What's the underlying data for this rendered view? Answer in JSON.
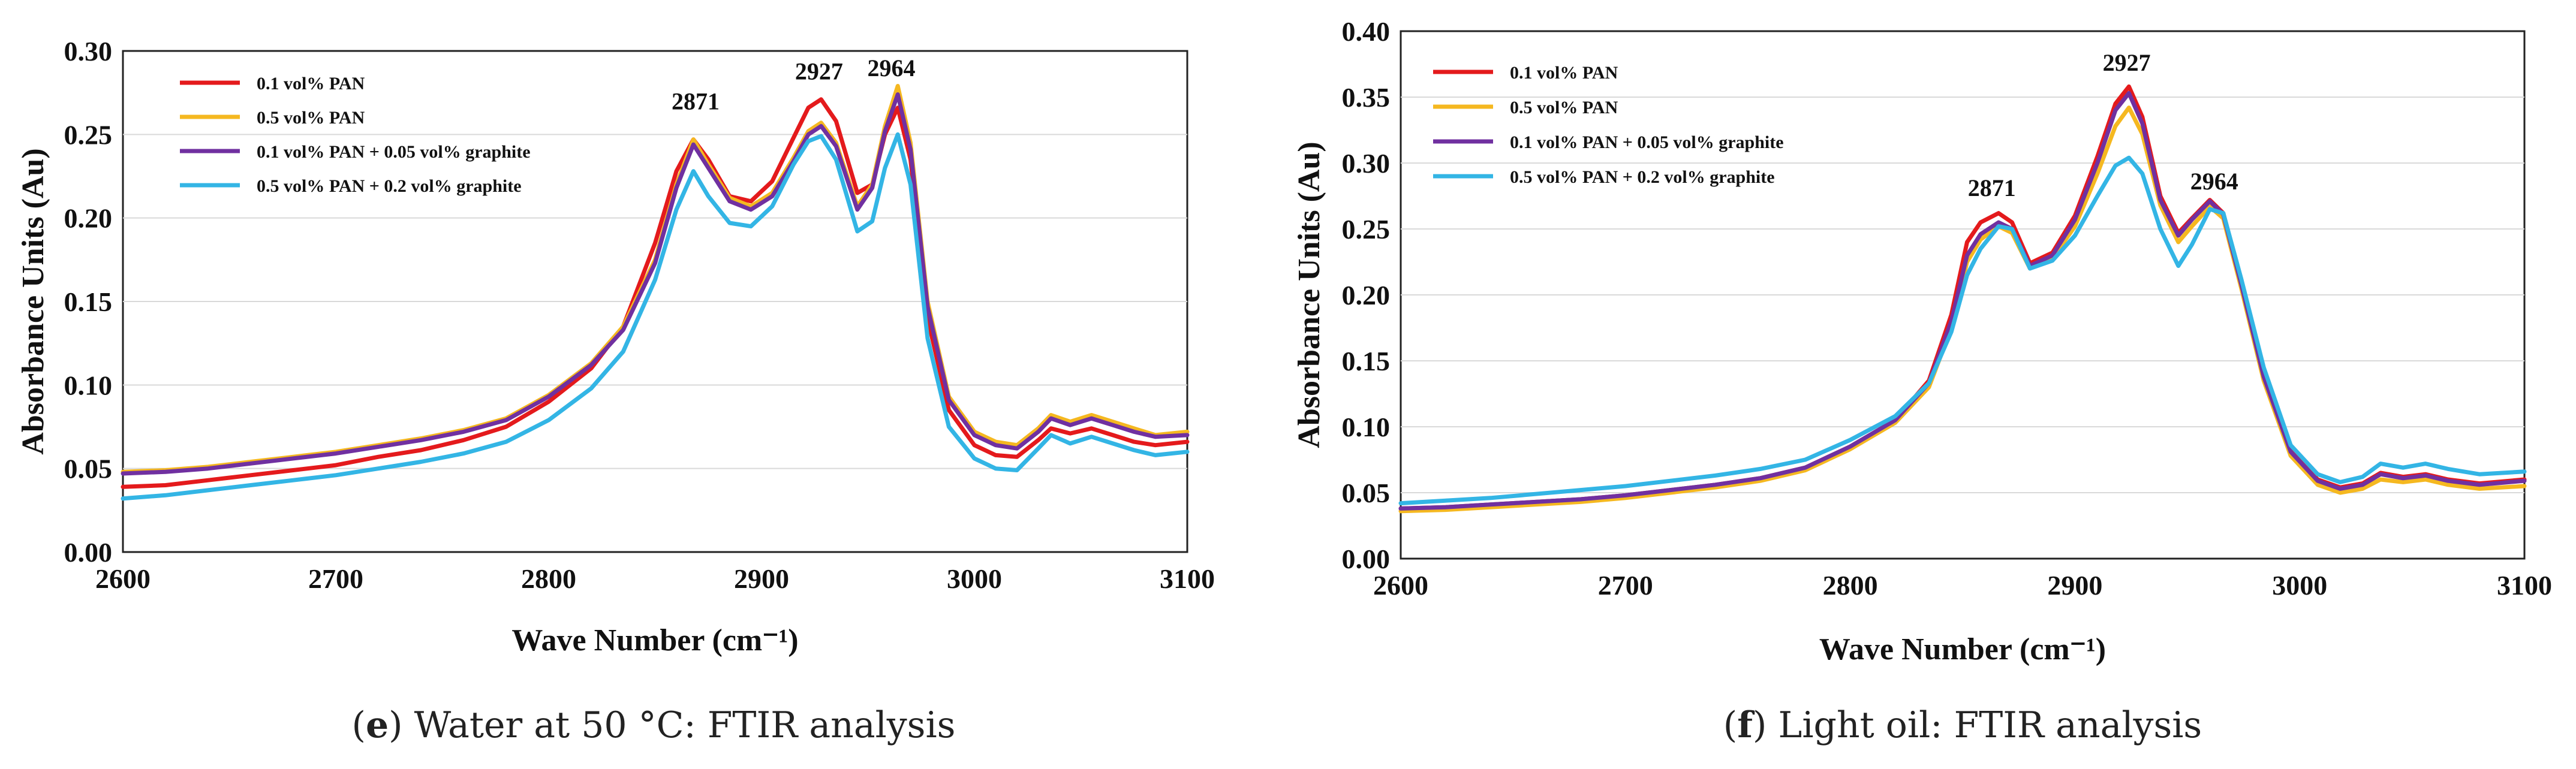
{
  "chart_data": [
    {
      "type": "line",
      "panel": "e",
      "caption_letter": "e",
      "caption_rest": " Water at 50 °C: FTIR analysis",
      "xlabel": "Wave Number (cm⁻¹)",
      "ylabel": "Absorbance Units (Au)",
      "xlim": [
        2600,
        3100
      ],
      "ylim": [
        0,
        0.3
      ],
      "xticks": [
        2600,
        2700,
        2800,
        2900,
        3000,
        3100
      ],
      "yticks": [
        0.0,
        0.05,
        0.1,
        0.15,
        0.2,
        0.25,
        0.3
      ],
      "ytick_labels": [
        "0.00",
        "0.05",
        "0.10",
        "0.15",
        "0.20",
        "0.25",
        "0.30"
      ],
      "legend_position": "top-left",
      "peak_annotations": [
        {
          "label": "2871",
          "x": 2869,
          "y": 0.265
        },
        {
          "label": "2927",
          "x": 2927,
          "y": 0.283
        },
        {
          "label": "2964",
          "x": 2961,
          "y": 0.285
        }
      ],
      "series": [
        {
          "name": "0.1 vol% PAN",
          "color": "#e41a1c",
          "x": [
            2600,
            2620,
            2640,
            2660,
            2680,
            2700,
            2720,
            2740,
            2760,
            2780,
            2800,
            2820,
            2835,
            2850,
            2860,
            2868,
            2875,
            2885,
            2895,
            2905,
            2915,
            2922,
            2928,
            2935,
            2945,
            2952,
            2958,
            2964,
            2970,
            2978,
            2988,
            3000,
            3010,
            3020,
            3030,
            3036,
            3045,
            3055,
            3065,
            3075,
            3085,
            3100
          ],
          "y": [
            0.039,
            0.04,
            0.043,
            0.046,
            0.049,
            0.052,
            0.057,
            0.061,
            0.067,
            0.075,
            0.09,
            0.11,
            0.135,
            0.185,
            0.228,
            0.247,
            0.235,
            0.213,
            0.21,
            0.222,
            0.248,
            0.266,
            0.271,
            0.258,
            0.215,
            0.22,
            0.25,
            0.266,
            0.235,
            0.14,
            0.085,
            0.064,
            0.058,
            0.057,
            0.067,
            0.074,
            0.071,
            0.074,
            0.07,
            0.066,
            0.064,
            0.066
          ]
        },
        {
          "name": "0.5 vol% PAN",
          "color": "#f5b820",
          "x": [
            2600,
            2620,
            2640,
            2660,
            2680,
            2700,
            2720,
            2740,
            2760,
            2780,
            2800,
            2820,
            2835,
            2850,
            2860,
            2868,
            2875,
            2885,
            2895,
            2905,
            2915,
            2922,
            2928,
            2935,
            2945,
            2952,
            2958,
            2964,
            2970,
            2978,
            2988,
            3000,
            3010,
            3020,
            3030,
            3036,
            3045,
            3055,
            3065,
            3075,
            3085,
            3100
          ],
          "y": [
            0.048,
            0.049,
            0.051,
            0.054,
            0.057,
            0.06,
            0.064,
            0.068,
            0.073,
            0.08,
            0.094,
            0.113,
            0.135,
            0.175,
            0.22,
            0.247,
            0.232,
            0.212,
            0.207,
            0.215,
            0.236,
            0.252,
            0.257,
            0.245,
            0.207,
            0.22,
            0.255,
            0.279,
            0.245,
            0.15,
            0.093,
            0.072,
            0.066,
            0.064,
            0.074,
            0.082,
            0.078,
            0.082,
            0.078,
            0.074,
            0.07,
            0.072
          ]
        },
        {
          "name": "0.1 vol% PAN + 0.05 vol% graphite",
          "color": "#7030a0",
          "x": [
            2600,
            2620,
            2640,
            2660,
            2680,
            2700,
            2720,
            2740,
            2760,
            2780,
            2800,
            2820,
            2835,
            2850,
            2860,
            2868,
            2875,
            2885,
            2895,
            2905,
            2915,
            2922,
            2928,
            2935,
            2945,
            2952,
            2958,
            2964,
            2970,
            2978,
            2988,
            3000,
            3010,
            3020,
            3030,
            3036,
            3045,
            3055,
            3065,
            3075,
            3085,
            3100
          ],
          "y": [
            0.047,
            0.048,
            0.05,
            0.053,
            0.056,
            0.059,
            0.063,
            0.067,
            0.072,
            0.079,
            0.093,
            0.112,
            0.133,
            0.173,
            0.218,
            0.244,
            0.23,
            0.21,
            0.205,
            0.213,
            0.234,
            0.25,
            0.255,
            0.243,
            0.205,
            0.218,
            0.252,
            0.274,
            0.241,
            0.147,
            0.091,
            0.07,
            0.064,
            0.062,
            0.072,
            0.08,
            0.076,
            0.08,
            0.076,
            0.072,
            0.069,
            0.07
          ]
        },
        {
          "name": "0.5 vol% PAN + 0.2 vol% graphite",
          "color": "#33b5e5",
          "x": [
            2600,
            2620,
            2640,
            2660,
            2680,
            2700,
            2720,
            2740,
            2760,
            2780,
            2800,
            2820,
            2835,
            2850,
            2860,
            2868,
            2875,
            2885,
            2895,
            2905,
            2915,
            2922,
            2928,
            2935,
            2945,
            2952,
            2958,
            2964,
            2970,
            2978,
            2988,
            3000,
            3010,
            3020,
            3030,
            3036,
            3045,
            3055,
            3065,
            3075,
            3085,
            3100
          ],
          "y": [
            0.032,
            0.034,
            0.037,
            0.04,
            0.043,
            0.046,
            0.05,
            0.054,
            0.059,
            0.066,
            0.079,
            0.098,
            0.12,
            0.163,
            0.205,
            0.228,
            0.213,
            0.197,
            0.195,
            0.207,
            0.232,
            0.246,
            0.249,
            0.235,
            0.192,
            0.198,
            0.23,
            0.25,
            0.22,
            0.128,
            0.075,
            0.056,
            0.05,
            0.049,
            0.062,
            0.07,
            0.065,
            0.069,
            0.065,
            0.061,
            0.058,
            0.06
          ]
        }
      ]
    },
    {
      "type": "line",
      "panel": "f",
      "caption_letter": "f",
      "caption_rest": " Light oil: FTIR analysis",
      "xlabel": "Wave Number (cm⁻¹)",
      "ylabel": "Absorbance Units (Au)",
      "xlim": [
        2600,
        3100
      ],
      "ylim": [
        0,
        0.4
      ],
      "xticks": [
        2600,
        2700,
        2800,
        2900,
        3000,
        3100
      ],
      "yticks": [
        0.0,
        0.05,
        0.1,
        0.15,
        0.2,
        0.25,
        0.3,
        0.35,
        0.4
      ],
      "ytick_labels": [
        "0.00",
        "0.05",
        "0.10",
        "0.15",
        "0.20",
        "0.25",
        "0.30",
        "0.35",
        "0.40"
      ],
      "legend_position": "top-left",
      "peak_annotations": [
        {
          "label": "2871",
          "x": 2863,
          "y": 0.275
        },
        {
          "label": "2927",
          "x": 2923,
          "y": 0.37
        },
        {
          "label": "2964",
          "x": 2962,
          "y": 0.28
        }
      ],
      "series": [
        {
          "name": "0.1 vol% PAN",
          "color": "#e41a1c",
          "x": [
            2600,
            2620,
            2640,
            2660,
            2680,
            2700,
            2720,
            2740,
            2760,
            2780,
            2800,
            2820,
            2835,
            2845,
            2852,
            2858,
            2866,
            2872,
            2880,
            2890,
            2900,
            2910,
            2918,
            2924,
            2930,
            2938,
            2946,
            2952,
            2960,
            2966,
            2974,
            2984,
            2996,
            3008,
            3018,
            3028,
            3036,
            3046,
            3056,
            3066,
            3080,
            3100
          ],
          "y": [
            0.038,
            0.039,
            0.041,
            0.043,
            0.045,
            0.048,
            0.052,
            0.056,
            0.061,
            0.069,
            0.085,
            0.105,
            0.135,
            0.185,
            0.24,
            0.255,
            0.262,
            0.255,
            0.224,
            0.232,
            0.26,
            0.305,
            0.345,
            0.358,
            0.335,
            0.275,
            0.247,
            0.258,
            0.272,
            0.262,
            0.21,
            0.14,
            0.082,
            0.06,
            0.054,
            0.057,
            0.065,
            0.062,
            0.064,
            0.06,
            0.057,
            0.06
          ]
        },
        {
          "name": "0.5 vol% PAN",
          "color": "#f5b820",
          "x": [
            2600,
            2620,
            2640,
            2660,
            2680,
            2700,
            2720,
            2740,
            2760,
            2780,
            2800,
            2820,
            2835,
            2845,
            2852,
            2858,
            2866,
            2872,
            2880,
            2890,
            2900,
            2910,
            2918,
            2924,
            2930,
            2938,
            2946,
            2952,
            2960,
            2966,
            2974,
            2984,
            2996,
            3008,
            3018,
            3028,
            3036,
            3046,
            3056,
            3066,
            3080,
            3100
          ],
          "y": [
            0.036,
            0.037,
            0.039,
            0.041,
            0.043,
            0.046,
            0.05,
            0.054,
            0.059,
            0.067,
            0.083,
            0.103,
            0.13,
            0.175,
            0.225,
            0.242,
            0.252,
            0.247,
            0.22,
            0.228,
            0.252,
            0.292,
            0.328,
            0.342,
            0.322,
            0.268,
            0.24,
            0.252,
            0.267,
            0.258,
            0.205,
            0.135,
            0.078,
            0.056,
            0.05,
            0.053,
            0.06,
            0.058,
            0.06,
            0.056,
            0.053,
            0.055
          ]
        },
        {
          "name": "0.1 vol% PAN + 0.05 vol% graphite",
          "color": "#7030a0",
          "x": [
            2600,
            2620,
            2640,
            2660,
            2680,
            2700,
            2720,
            2740,
            2760,
            2780,
            2800,
            2820,
            2835,
            2845,
            2852,
            2858,
            2866,
            2872,
            2880,
            2890,
            2900,
            2910,
            2918,
            2924,
            2930,
            2938,
            2946,
            2952,
            2960,
            2966,
            2974,
            2984,
            2996,
            3008,
            3018,
            3028,
            3036,
            3046,
            3056,
            3066,
            3080,
            3100
          ],
          "y": [
            0.038,
            0.039,
            0.041,
            0.043,
            0.045,
            0.048,
            0.052,
            0.056,
            0.061,
            0.069,
            0.085,
            0.105,
            0.133,
            0.18,
            0.23,
            0.246,
            0.255,
            0.25,
            0.222,
            0.23,
            0.257,
            0.3,
            0.34,
            0.353,
            0.33,
            0.272,
            0.245,
            0.257,
            0.271,
            0.261,
            0.208,
            0.138,
            0.081,
            0.059,
            0.053,
            0.056,
            0.064,
            0.061,
            0.063,
            0.059,
            0.056,
            0.059
          ]
        },
        {
          "name": "0.5 vol% PAN + 0.2 vol% graphite",
          "color": "#33b5e5",
          "x": [
            2600,
            2620,
            2640,
            2660,
            2680,
            2700,
            2720,
            2740,
            2760,
            2780,
            2800,
            2820,
            2835,
            2845,
            2852,
            2858,
            2866,
            2872,
            2880,
            2890,
            2900,
            2910,
            2918,
            2924,
            2930,
            2938,
            2946,
            2952,
            2960,
            2966,
            2974,
            2984,
            2996,
            3008,
            3018,
            3028,
            3036,
            3046,
            3056,
            3066,
            3080,
            3100
          ],
          "y": [
            0.042,
            0.044,
            0.046,
            0.049,
            0.052,
            0.055,
            0.059,
            0.063,
            0.068,
            0.075,
            0.09,
            0.108,
            0.133,
            0.172,
            0.215,
            0.235,
            0.252,
            0.25,
            0.22,
            0.226,
            0.245,
            0.275,
            0.298,
            0.304,
            0.292,
            0.25,
            0.222,
            0.238,
            0.265,
            0.262,
            0.212,
            0.145,
            0.086,
            0.064,
            0.058,
            0.062,
            0.072,
            0.069,
            0.072,
            0.068,
            0.064,
            0.066
          ]
        }
      ]
    }
  ]
}
